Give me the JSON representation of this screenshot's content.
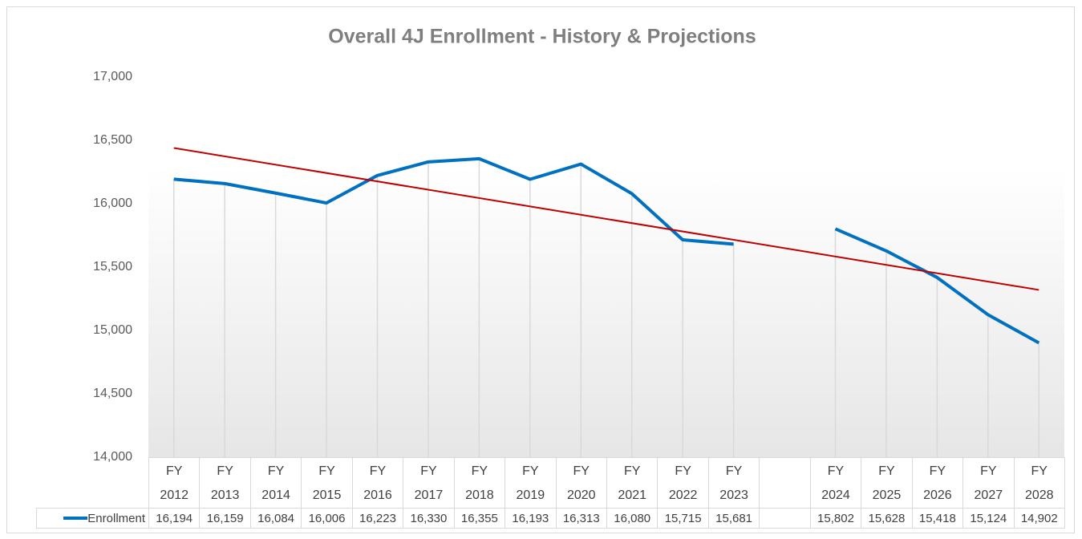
{
  "chart_data": {
    "type": "line",
    "title": "Overall 4J Enrollment - History & Projections",
    "categories": [
      "FY 2012",
      "FY 2013",
      "FY 2014",
      "FY 2015",
      "FY 2016",
      "FY 2017",
      "FY 2018",
      "FY 2019",
      "FY 2020",
      "FY 2021",
      "FY 2022",
      "FY 2023",
      null,
      "FY 2024",
      "FY 2025",
      "FY 2026",
      "FY 2027",
      "FY 2028"
    ],
    "series": [
      {
        "name": "Enrollment",
        "color": "#0070c0",
        "values": [
          16194,
          16159,
          16084,
          16006,
          16223,
          16330,
          16355,
          16193,
          16313,
          16080,
          15715,
          15681,
          null,
          15802,
          15628,
          15418,
          15124,
          14902
        ],
        "value_labels": [
          "16,194",
          "16,159",
          "16,084",
          "16,006",
          "16,223",
          "16,330",
          "16,355",
          "16,193",
          "16,313",
          "16,080",
          "15,715",
          "15,681",
          null,
          "15,802",
          "15,628",
          "15,418",
          "15,124",
          "14,902"
        ]
      }
    ],
    "trendline": {
      "color": "#c00000",
      "start": 16440,
      "end": 15320
    },
    "ylim": [
      14000,
      17000
    ],
    "yticks": [
      {
        "value": 14000,
        "label": "14,000"
      },
      {
        "value": 14500,
        "label": "14,500"
      },
      {
        "value": 15000,
        "label": "15,000"
      },
      {
        "value": 15500,
        "label": "15,500"
      },
      {
        "value": 16000,
        "label": "16,000"
      },
      {
        "value": 16500,
        "label": "16,500"
      },
      {
        "value": 17000,
        "label": "17,000"
      }
    ],
    "drop_lines": true
  }
}
